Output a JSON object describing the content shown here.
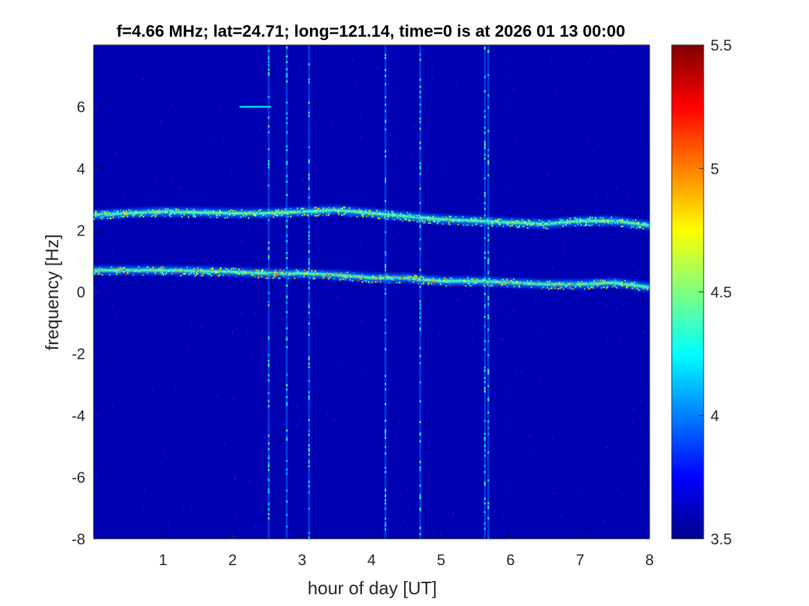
{
  "chart_data": {
    "type": "heatmap",
    "title": "f=4.66 MHz;  lat=24.71; long=121.14, time=0 is at 2026 01 13 00:00",
    "xlabel": "hour of day [UT]",
    "ylabel": "frequency [Hz]",
    "xlim": [
      0,
      8
    ],
    "ylim": [
      -8,
      8
    ],
    "x_ticks": [
      1,
      2,
      3,
      4,
      5,
      6,
      7,
      8
    ],
    "x_tick_labels": [
      "1",
      "2",
      "3",
      "4",
      "5",
      "6",
      "7",
      "8"
    ],
    "y_ticks": [
      -8,
      -6,
      -4,
      -2,
      0,
      2,
      4,
      6
    ],
    "y_tick_labels": [
      "-8",
      "-6",
      "-4",
      "-2",
      "0",
      "2",
      "4",
      "6"
    ],
    "colorbar": {
      "colormap": "jet",
      "clim": [
        3.5,
        5.5
      ],
      "ticks": [
        3.5,
        4,
        4.5,
        5,
        5.5
      ],
      "tick_labels": [
        "3.5",
        "4",
        "4.5",
        "5",
        "5.5"
      ]
    },
    "background_level": 3.6,
    "grid": false,
    "features": {
      "upper_band": {
        "points": [
          [
            0,
            2.5
          ],
          [
            1,
            2.6
          ],
          [
            2,
            2.55
          ],
          [
            2.5,
            2.55
          ],
          [
            3.0,
            2.6
          ],
          [
            3.5,
            2.65
          ],
          [
            4.0,
            2.55
          ],
          [
            4.5,
            2.45
          ],
          [
            5.0,
            2.35
          ],
          [
            5.5,
            2.3
          ],
          [
            6.0,
            2.25
          ],
          [
            6.5,
            2.2
          ],
          [
            7.0,
            2.3
          ],
          [
            7.5,
            2.3
          ],
          [
            8.0,
            2.15
          ]
        ],
        "peak_level": 4.9
      },
      "lower_band": {
        "points": [
          [
            0,
            0.7
          ],
          [
            1,
            0.7
          ],
          [
            2,
            0.65
          ],
          [
            2.5,
            0.6
          ],
          [
            3.0,
            0.6
          ],
          [
            3.5,
            0.55
          ],
          [
            4.0,
            0.45
          ],
          [
            4.5,
            0.45
          ],
          [
            5.0,
            0.35
          ],
          [
            5.5,
            0.35
          ],
          [
            6.0,
            0.3
          ],
          [
            6.5,
            0.25
          ],
          [
            7.0,
            0.25
          ],
          [
            7.5,
            0.3
          ],
          [
            8.0,
            0.15
          ]
        ],
        "peak_level": 5.2
      },
      "vertical_streaks_hours": [
        2.52,
        2.78,
        3.1,
        4.2,
        4.7,
        5.63,
        5.68
      ],
      "short_segment": {
        "x": [
          2.1,
          2.55
        ],
        "y": 6.0
      }
    }
  }
}
